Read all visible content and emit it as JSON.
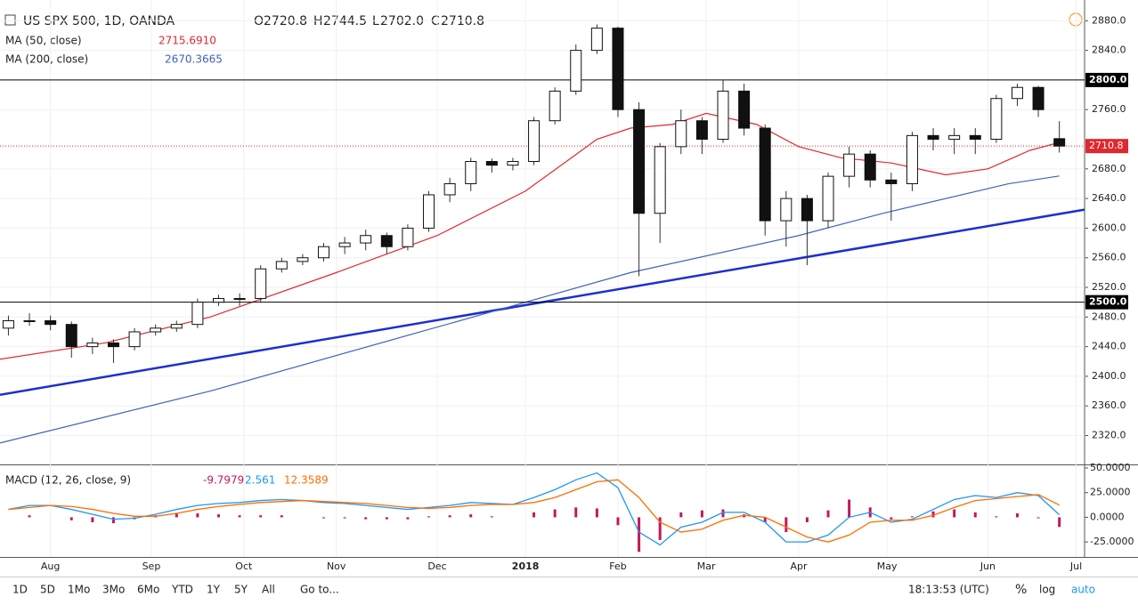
{
  "toolbar": {
    "ranges": [
      "1D",
      "5D",
      "1Mo",
      "3Mo",
      "6Mo",
      "YTD",
      "1Y",
      "5Y",
      "All"
    ],
    "goto": "Go to...",
    "time": "18:13:53 (UTC)",
    "percent": "%",
    "log": "log",
    "auto": "auto"
  },
  "chart_data": [
    {
      "type": "candlestick",
      "title": "US SPX 500, 1D, OANDA",
      "header": {
        "O": "2720.8",
        "H": "2744.5",
        "L": "2702.0",
        "C": "2710.8"
      },
      "xlim": [
        0,
        258
      ],
      "xticks": [
        {
          "value": 12,
          "label": "Aug"
        },
        {
          "value": 36,
          "label": "Sep"
        },
        {
          "value": 58,
          "label": "Oct"
        },
        {
          "value": 80,
          "label": "Nov"
        },
        {
          "value": 104,
          "label": "Dec"
        },
        {
          "value": 125,
          "label": "2018"
        },
        {
          "value": 147,
          "label": "Feb"
        },
        {
          "value": 168,
          "label": "Mar"
        },
        {
          "value": 190,
          "label": "Apr"
        },
        {
          "value": 211,
          "label": "May"
        },
        {
          "value": 235,
          "label": "Jun"
        },
        {
          "value": 256,
          "label": "Jul"
        }
      ],
      "ylim": [
        2281,
        2908
      ],
      "yticks": [
        {
          "value": 2320,
          "label": "2320.0"
        },
        {
          "value": 2360,
          "label": "2360.0"
        },
        {
          "value": 2400,
          "label": "2400.0"
        },
        {
          "value": 2440,
          "label": "2440.0"
        },
        {
          "value": 2480,
          "label": "2480.0"
        },
        {
          "value": 2520,
          "label": "2520.0"
        },
        {
          "value": 2560,
          "label": "2560.0"
        },
        {
          "value": 2600,
          "label": "2600.0"
        },
        {
          "value": 2640,
          "label": "2640.0"
        },
        {
          "value": 2680,
          "label": "2680.0"
        },
        {
          "value": 2760,
          "label": "2760.0"
        },
        {
          "value": 2840,
          "label": "2840.0"
        },
        {
          "value": 2880,
          "label": "2880.0"
        }
      ],
      "candles": {
        "x": [
          2,
          7,
          12,
          17,
          22,
          27,
          32,
          37,
          42,
          47,
          52,
          57,
          62,
          67,
          72,
          77,
          82,
          87,
          92,
          97,
          102,
          107,
          112,
          117,
          122,
          127,
          132,
          137,
          142,
          147,
          152,
          157,
          162,
          167,
          172,
          177,
          182,
          187,
          192,
          197,
          202,
          207,
          212,
          217,
          222,
          227,
          232,
          237,
          242,
          247,
          252
        ],
        "open": [
          2465,
          2475,
          2475,
          2470,
          2440,
          2445,
          2440,
          2460,
          2465,
          2470,
          2500,
          2505,
          2505,
          2545,
          2555,
          2560,
          2575,
          2580,
          2590,
          2575,
          2600,
          2645,
          2660,
          2690,
          2685,
          2690,
          2745,
          2785,
          2840,
          2870,
          2760,
          2620,
          2710,
          2745,
          2720,
          2785,
          2735,
          2610,
          2640,
          2610,
          2670,
          2700,
          2665,
          2660,
          2725,
          2720,
          2725,
          2720,
          2775,
          2790,
          2720.8
        ],
        "high": [
          2482,
          2485,
          2482,
          2474,
          2452,
          2450,
          2465,
          2470,
          2475,
          2505,
          2510,
          2512,
          2550,
          2560,
          2565,
          2580,
          2588,
          2598,
          2594,
          2605,
          2650,
          2668,
          2695,
          2694,
          2695,
          2750,
          2790,
          2848,
          2875,
          2872,
          2770,
          2715,
          2760,
          2750,
          2800,
          2795,
          2740,
          2650,
          2645,
          2675,
          2710,
          2705,
          2675,
          2730,
          2735,
          2735,
          2735,
          2780,
          2795,
          2792,
          2744.5
        ],
        "low": [
          2455,
          2468,
          2462,
          2425,
          2430,
          2418,
          2435,
          2455,
          2460,
          2465,
          2495,
          2495,
          2500,
          2540,
          2550,
          2555,
          2565,
          2570,
          2565,
          2570,
          2595,
          2635,
          2650,
          2675,
          2678,
          2685,
          2740,
          2780,
          2835,
          2750,
          2535,
          2580,
          2700,
          2700,
          2715,
          2725,
          2590,
          2575,
          2550,
          2600,
          2655,
          2655,
          2610,
          2650,
          2705,
          2700,
          2700,
          2715,
          2765,
          2750,
          2702
        ],
        "close": [
          2475,
          2475,
          2470,
          2440,
          2445,
          2440,
          2460,
          2465,
          2470,
          2500,
          2505,
          2505,
          2545,
          2555,
          2560,
          2575,
          2580,
          2590,
          2575,
          2600,
          2645,
          2660,
          2690,
          2685,
          2690,
          2745,
          2785,
          2840,
          2870,
          2760,
          2620,
          2710,
          2745,
          2720,
          2785,
          2735,
          2610,
          2640,
          2610,
          2670,
          2700,
          2665,
          2660,
          2725,
          2720,
          2725,
          2720,
          2775,
          2790,
          2760,
          2710.8
        ]
      },
      "series": [
        {
          "name": "MA (50, close)",
          "legend_value": "2715.6910",
          "color": "#e0282e",
          "x": [
            0,
            25,
            50,
            80,
            104,
            125,
            142,
            150,
            160,
            168,
            180,
            190,
            200,
            212,
            225,
            235,
            245,
            252
          ],
          "values": [
            2423,
            2445,
            2480,
            2540,
            2590,
            2650,
            2720,
            2735,
            2740,
            2755,
            2740,
            2710,
            2695,
            2688,
            2672,
            2680,
            2705,
            2715.691
          ]
        },
        {
          "name": "MA (200, close)",
          "legend_value": "2670.3665",
          "color": "#3e64b4",
          "x": [
            0,
            50,
            100,
            150,
            190,
            210,
            240,
            252
          ],
          "values": [
            2310,
            2380,
            2460,
            2540,
            2590,
            2620,
            2660,
            2670.3665
          ]
        }
      ],
      "hlines": [
        {
          "value": 2800,
          "label": "2800.0"
        },
        {
          "value": 2500,
          "label": "2500.0"
        }
      ],
      "last_price": {
        "value": 2710.8,
        "label": "2710.8",
        "color": "#e0282e"
      },
      "trendline": {
        "x": [
          0,
          258
        ],
        "y": [
          2375,
          2625
        ],
        "color": "#1c2fd0"
      }
    },
    {
      "type": "macd",
      "title": "MACD (12, 26, close, 9)",
      "ylim": [
        -40.2,
        52.7
      ],
      "yticks": [
        {
          "value": 50,
          "label": "50.0000"
        },
        {
          "value": 25,
          "label": "25.0000"
        },
        {
          "value": 0,
          "label": "0.0000"
        },
        {
          "value": -25,
          "label": "-25.0000"
        }
      ],
      "x": [
        2,
        7,
        12,
        17,
        22,
        27,
        32,
        37,
        42,
        47,
        52,
        57,
        62,
        67,
        72,
        77,
        82,
        87,
        92,
        97,
        102,
        107,
        112,
        117,
        122,
        127,
        132,
        137,
        142,
        147,
        152,
        157,
        162,
        167,
        172,
        177,
        182,
        187,
        192,
        197,
        202,
        207,
        212,
        217,
        222,
        227,
        232,
        237,
        242,
        247,
        252
      ],
      "histogram": {
        "color": "#c2185b",
        "values": [
          0,
          2,
          0,
          -3,
          -5,
          -6,
          -2,
          2,
          4,
          4,
          3,
          2,
          2,
          2,
          0,
          -1,
          -1,
          -2,
          -2,
          -2,
          1,
          2,
          3,
          1,
          0,
          5,
          8,
          10,
          9,
          -8,
          -35,
          -23,
          5,
          7,
          8,
          3,
          -5,
          -15,
          -5,
          7,
          18,
          10,
          -2,
          1,
          6,
          8,
          5,
          1,
          4,
          -1,
          -9.7979
        ]
      },
      "series": [
        {
          "name": "MACD",
          "color": "#2196f3",
          "values": [
            8,
            12,
            12,
            8,
            3,
            -2,
            -1,
            3,
            8,
            12,
            14,
            15,
            17,
            18,
            17,
            15,
            14,
            12,
            10,
            8,
            10,
            12,
            15,
            14,
            13,
            20,
            28,
            38,
            45,
            30,
            -15,
            -28,
            -10,
            -5,
            5,
            5,
            -5,
            -25,
            -25,
            -18,
            0,
            5,
            -5,
            -2,
            8,
            18,
            22,
            20,
            25,
            22,
            2.561
          ]
        },
        {
          "name": "Signal",
          "color": "#ff6d00",
          "values": [
            8,
            10,
            12,
            11,
            8,
            4,
            1,
            1,
            4,
            8,
            11,
            13,
            15,
            16,
            17,
            16,
            15,
            14,
            12,
            10,
            9,
            10,
            12,
            13,
            13,
            15,
            20,
            28,
            36,
            38,
            20,
            -5,
            -15,
            -12,
            -3,
            2,
            0,
            -10,
            -20,
            -25,
            -18,
            -5,
            -3,
            -3,
            2,
            10,
            17,
            19,
            21,
            23,
            12.3589
          ]
        }
      ]
    }
  ]
}
